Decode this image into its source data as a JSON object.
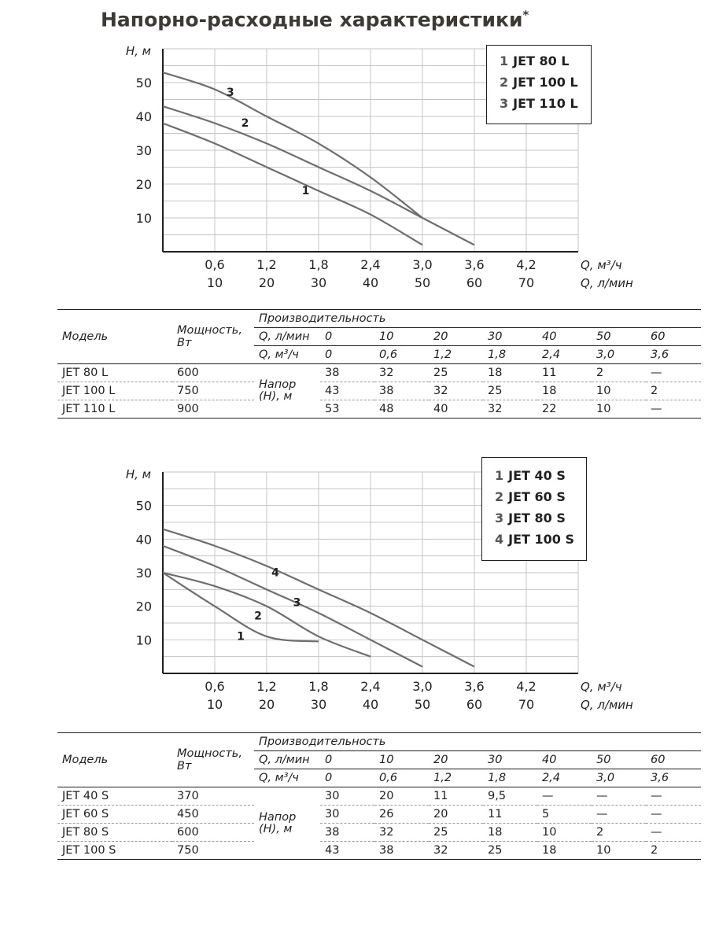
{
  "title": "Напорно-расходные характеристики",
  "title_mark": "*",
  "chart_data": [
    {
      "type": "line",
      "ylabel": "Н, м",
      "xlabel_m3h": "Q, м³/ч",
      "xlabel_lmin": "Q, л/мин",
      "y_ticks": [
        "10",
        "20",
        "30",
        "40",
        "50"
      ],
      "x_ticks_m3h": [
        "0,6",
        "1,2",
        "1,8",
        "2,4",
        "3,0",
        "3,6",
        "4,2"
      ],
      "x_ticks_lmin": [
        "10",
        "20",
        "30",
        "40",
        "50",
        "60",
        "70"
      ],
      "xlim": [
        0,
        4.8
      ],
      "ylim": [
        0,
        60
      ],
      "grid": true,
      "legend_position": "top-right",
      "series": [
        {
          "label_num": "1",
          "name": "JET 80 L",
          "x": [
            0,
            0.6,
            1.2,
            1.8,
            2.4,
            3.0
          ],
          "y": [
            38,
            32,
            25,
            18,
            11,
            2
          ],
          "label_at": [
            1.65,
            17
          ]
        },
        {
          "label_num": "2",
          "name": "JET 100 L",
          "x": [
            0,
            0.6,
            1.2,
            1.8,
            2.4,
            3.0,
            3.6
          ],
          "y": [
            43,
            38,
            32,
            25,
            18,
            10,
            2
          ],
          "label_at": [
            0.95,
            37
          ]
        },
        {
          "label_num": "3",
          "name": "JET 110 L",
          "x": [
            0,
            0.6,
            1.2,
            1.8,
            2.4,
            3.0
          ],
          "y": [
            53,
            48,
            40,
            32,
            22,
            10
          ],
          "label_at": [
            0.78,
            46
          ]
        }
      ]
    },
    {
      "type": "line",
      "ylabel": "Н, м",
      "xlabel_m3h": "Q, м³/ч",
      "xlabel_lmin": "Q, л/мин",
      "y_ticks": [
        "10",
        "20",
        "30",
        "40",
        "50"
      ],
      "x_ticks_m3h": [
        "0,6",
        "1,2",
        "1,8",
        "2,4",
        "3,0",
        "3,6",
        "4,2"
      ],
      "x_ticks_lmin": [
        "10",
        "20",
        "30",
        "40",
        "50",
        "60",
        "70"
      ],
      "xlim": [
        0,
        4.8
      ],
      "ylim": [
        0,
        60
      ],
      "grid": true,
      "legend_position": "top-right",
      "series": [
        {
          "label_num": "1",
          "name": "JET 40 S",
          "x": [
            0,
            0.6,
            1.2,
            1.8
          ],
          "y": [
            30,
            20,
            11,
            9.5
          ],
          "label_at": [
            0.9,
            10
          ]
        },
        {
          "label_num": "2",
          "name": "JET 60 S",
          "x": [
            0,
            0.6,
            1.2,
            1.8,
            2.4
          ],
          "y": [
            30,
            26,
            20,
            11,
            5
          ],
          "label_at": [
            1.1,
            16
          ]
        },
        {
          "label_num": "3",
          "name": "JET 80 S",
          "x": [
            0,
            0.6,
            1.2,
            1.8,
            2.4,
            3.0
          ],
          "y": [
            38,
            32,
            25,
            18,
            10,
            2
          ],
          "label_at": [
            1.55,
            20
          ]
        },
        {
          "label_num": "4",
          "name": "JET 100 S",
          "x": [
            0,
            0.6,
            1.2,
            1.8,
            2.4,
            3.0,
            3.6
          ],
          "y": [
            43,
            38,
            32,
            25,
            18,
            10,
            2
          ],
          "label_at": [
            1.3,
            29
          ]
        }
      ]
    }
  ],
  "tables": [
    {
      "model_header": "Модель",
      "power_header": "Мощность, Вт",
      "perf_header": "Производительность",
      "q_lmin_label": "Q, л/мин",
      "q_m3h_label": "Q, м³/ч",
      "head_label": "Напор (Н), м",
      "q_lmin": [
        "0",
        "10",
        "20",
        "30",
        "40",
        "50",
        "60"
      ],
      "q_m3h": [
        "0",
        "0,6",
        "1,2",
        "1,8",
        "2,4",
        "3,0",
        "3,6"
      ],
      "rows": [
        {
          "model": "JET 80 L",
          "power": "600",
          "values": [
            "38",
            "32",
            "25",
            "18",
            "11",
            "2",
            "—"
          ]
        },
        {
          "model": "JET 100 L",
          "power": "750",
          "values": [
            "43",
            "38",
            "32",
            "25",
            "18",
            "10",
            "2"
          ]
        },
        {
          "model": "JET 110 L",
          "power": "900",
          "values": [
            "53",
            "48",
            "40",
            "32",
            "22",
            "10",
            "—"
          ]
        }
      ]
    },
    {
      "model_header": "Модель",
      "power_header": "Мощность, Вт",
      "perf_header": "Производительность",
      "q_lmin_label": "Q, л/мин",
      "q_m3h_label": "Q, м³/ч",
      "head_label": "Напор (Н), м",
      "q_lmin": [
        "0",
        "10",
        "20",
        "30",
        "40",
        "50",
        "60"
      ],
      "q_m3h": [
        "0",
        "0,6",
        "1,2",
        "1,8",
        "2,4",
        "3,0",
        "3,6"
      ],
      "rows": [
        {
          "model": "JET 40 S",
          "power": "370",
          "values": [
            "30",
            "20",
            "11",
            "9,5",
            "—",
            "—",
            "—"
          ]
        },
        {
          "model": "JET 60 S",
          "power": "450",
          "values": [
            "30",
            "26",
            "20",
            "11",
            "5",
            "—",
            "—"
          ]
        },
        {
          "model": "JET 80 S",
          "power": "600",
          "values": [
            "38",
            "32",
            "25",
            "18",
            "10",
            "2",
            "—"
          ]
        },
        {
          "model": "JET 100 S",
          "power": "750",
          "values": [
            "43",
            "38",
            "32",
            "25",
            "18",
            "10",
            "2"
          ]
        }
      ]
    }
  ]
}
